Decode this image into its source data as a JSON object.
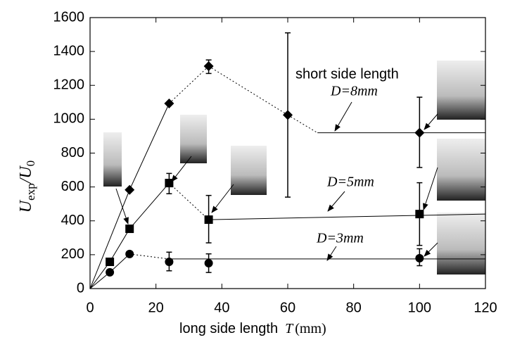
{
  "chart_data": {
    "type": "scatter",
    "x_label": "long side length",
    "x_symbol": "T",
    "x_unit": "(mm)",
    "y_label_parts": [
      "U",
      "exp",
      "/U",
      "0"
    ],
    "xlim": [
      0,
      120
    ],
    "ylim": [
      0,
      1600
    ],
    "xticks": [
      0,
      20,
      40,
      60,
      80,
      100,
      120
    ],
    "yticks": [
      0,
      200,
      400,
      600,
      800,
      1000,
      1200,
      1400,
      1600
    ],
    "annotations": [
      "short side length",
      "D=8mm",
      "D=5mm",
      "D=3mm"
    ],
    "series": [
      {
        "name": "D=8mm",
        "marker": "diamond",
        "color": "#000",
        "x": [
          12,
          24,
          36,
          60,
          100
        ],
        "values": [
          583,
          1093,
          1313,
          1025,
          920
        ],
        "yerr": [
          null,
          null,
          [
            1270,
            1350
          ],
          [
            540,
            1510
          ],
          [
            715,
            1130
          ]
        ],
        "line": {
          "x": [
            0,
            12,
            24,
            36,
            60,
            69,
            120
          ],
          "y": [
            0,
            583,
            1093,
            1313,
            1025,
            920,
            920
          ],
          "dashed": [
            false,
            false,
            true,
            true,
            true,
            false
          ]
        }
      },
      {
        "name": "D=5mm",
        "marker": "square",
        "color": "#000",
        "x": [
          6,
          12,
          24,
          36,
          100
        ],
        "values": [
          158,
          353,
          623,
          407,
          440
        ],
        "yerr": [
          null,
          null,
          [
            560,
            680
          ],
          [
            270,
            550
          ],
          [
            255,
            625
          ]
        ],
        "line": {
          "x": [
            0,
            6,
            12,
            24,
            36,
            120
          ],
          "y": [
            0,
            158,
            353,
            623,
            407,
            440
          ],
          "dashed": [
            false,
            false,
            false,
            true,
            false
          ]
        }
      },
      {
        "name": "D=3mm",
        "marker": "circle",
        "color": "#000",
        "x": [
          6,
          12,
          24,
          36,
          100
        ],
        "values": [
          96,
          204,
          158,
          150,
          179
        ],
        "yerr": [
          null,
          null,
          [
            105,
            215
          ],
          [
            95,
            205
          ],
          [
            135,
            235
          ]
        ],
        "line": {
          "x": [
            0,
            6,
            12,
            24,
            120
          ],
          "y": [
            0,
            96,
            204,
            175,
            175
          ],
          "dashed": [
            false,
            false,
            true,
            false
          ]
        }
      }
    ]
  }
}
